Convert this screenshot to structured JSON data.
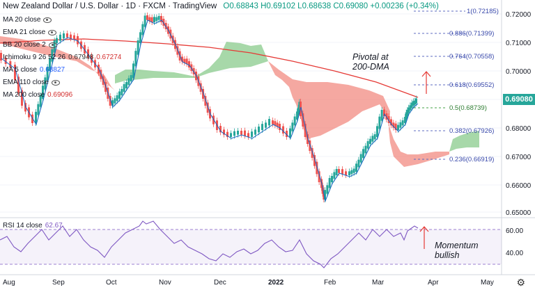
{
  "header": {
    "symbol": "New Zealand Dollar / U.S. Dollar · 1D · FXCM · TradingView",
    "ohlc": "O0.68843 H0.69102 L0.68638 C0.69080 +0.00236 (+0.34%)"
  },
  "indicators": [
    {
      "label": "MA 20 close",
      "value": ""
    },
    {
      "label": "EMA 21 close",
      "value": ""
    },
    {
      "label": "BB 20 close 2",
      "value": ""
    },
    {
      "label": "Ichimoku 9 26 52 26",
      "value": "0.67948",
      "value2": "0.67274"
    },
    {
      "label": "MA 5 close",
      "value": "0.68827"
    },
    {
      "label": "EMA 110 close",
      "value": ""
    },
    {
      "label": "MA 200 close",
      "value": "0.69096"
    }
  ],
  "price_axis": [
    "0.72000",
    "0.71000",
    "0.70000",
    "0.69000",
    "0.68000",
    "0.67000",
    "0.66000",
    "0.65000"
  ],
  "current_price": "0.69080",
  "fib_levels": [
    {
      "label": "1(0.72185)"
    },
    {
      "label": "0.886(0.71399)"
    },
    {
      "label": "0.764(0.70558)"
    },
    {
      "label": "0.618(0.69552)"
    },
    {
      "label": "0.5(0.68739)"
    },
    {
      "label": "0.382(0.67926)"
    },
    {
      "label": "0.236(0.66919)"
    }
  ],
  "rsi": {
    "label": "RSI 14 close",
    "value": "62.67",
    "axis": [
      "60.00",
      "40.00"
    ]
  },
  "time_axis": [
    "Aug",
    "Sep",
    "Oct",
    "Nov",
    "Dec",
    "2022",
    "Feb",
    "Mar",
    "Apr",
    "May"
  ],
  "annotations": {
    "pivotal_line1": "Pivotal at",
    "pivotal_line2": "200-DMA",
    "momentum_line1": "Momentum",
    "momentum_line2": "bullish"
  },
  "colors": {
    "up": "#26a69a",
    "down": "#ef5350",
    "kumo_bear": "#ef9a9a",
    "kumo_bull": "#a5d6a7",
    "ma200": "#e53935",
    "ma5": "#1565c0",
    "rsi": "#7e57c2",
    "fib": "#5c6bc0"
  },
  "icons": {
    "visibility": "eye-icon",
    "settings": "gear-icon"
  }
}
